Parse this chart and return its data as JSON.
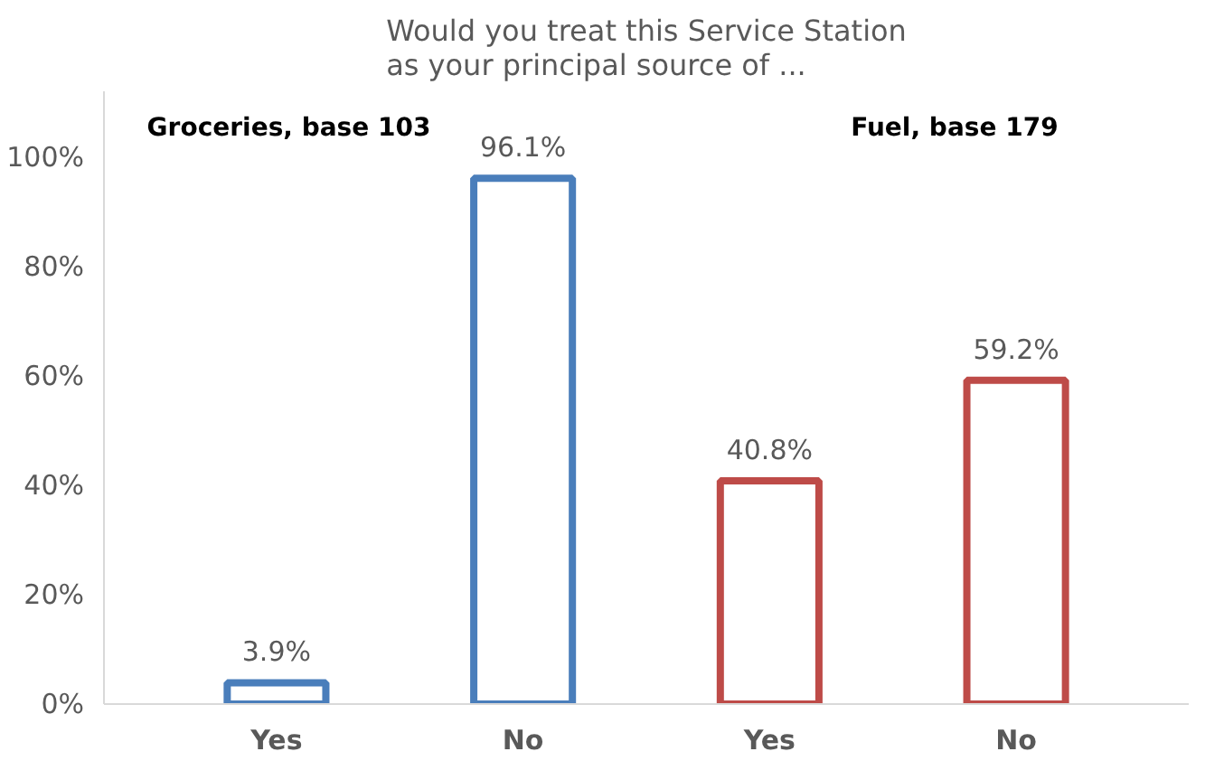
{
  "chart_data": {
    "type": "bar",
    "title": "Would you treat this Service Station as your principal source of ...",
    "categories": [
      "Yes",
      "No",
      "Yes",
      "No"
    ],
    "values": [
      3.9,
      96.1,
      40.8,
      59.2
    ],
    "colors": [
      "#4a7ebb",
      "#4a7ebb",
      "#be4b48",
      "#be4b48"
    ],
    "value_labels": [
      "3.9%",
      "96.1%",
      "40.8%",
      "59.2%"
    ],
    "ylim": [
      0,
      112
    ],
    "yticks": [
      {
        "value": 0,
        "label": "0%"
      },
      {
        "value": 20,
        "label": "20%"
      },
      {
        "value": 40,
        "label": "40%"
      },
      {
        "value": 60,
        "label": "60%"
      },
      {
        "value": 80,
        "label": "80%"
      },
      {
        "value": 100,
        "label": "100%"
      }
    ],
    "annotations": [
      "Groceries, base 103",
      "Fuel, base 179"
    ],
    "grid": false
  }
}
